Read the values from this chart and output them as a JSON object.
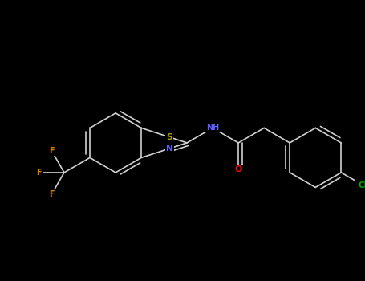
{
  "bg": "#000000",
  "bond_color": "#d0d0d0",
  "bond_lw": 1.2,
  "atom_colors": {
    "N": "#6060ff",
    "O": "#ff0000",
    "S": "#b0a000",
    "F": "#e08000",
    "Cl": "#00aa00"
  },
  "figsize": [
    4.55,
    3.5
  ],
  "dpi": 100
}
